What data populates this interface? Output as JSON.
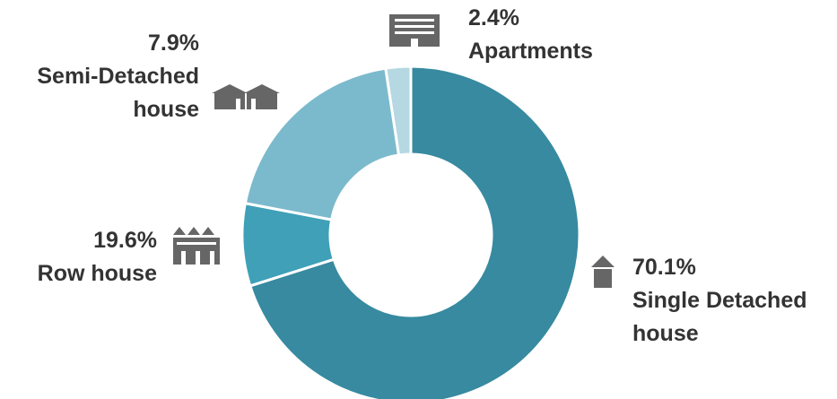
{
  "chart_data": {
    "type": "donut",
    "categories": [
      "Single Detached house",
      "Semi-Detached house",
      "Row house",
      "Apartments"
    ],
    "values": [
      70.1,
      7.9,
      19.6,
      2.4
    ],
    "value_labels": [
      "70.1%",
      "7.9%",
      "19.6%",
      "2.4%"
    ],
    "colors": [
      "#378aa0",
      "#3fa0b8",
      "#7bbacc",
      "#b5d8e2"
    ]
  }
}
